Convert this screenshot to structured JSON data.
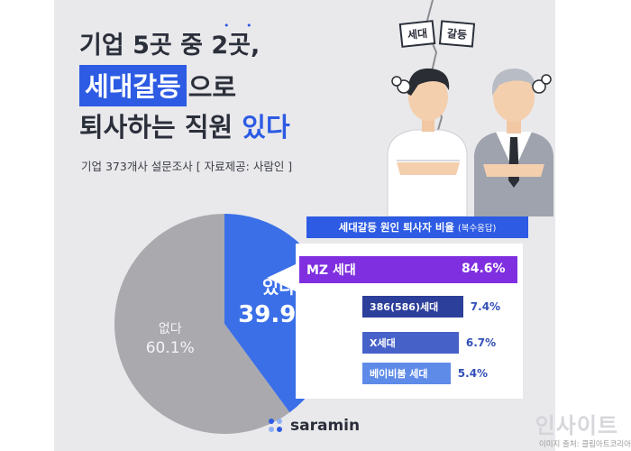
{
  "headline": {
    "line1": "기업 5곳 중 2곳,",
    "line2_highlight": "세대갈등",
    "line2_rest": "으로",
    "line3_main": "퇴사하는 직원 ",
    "line3_blue": "있다"
  },
  "source": "기업 373개사 설문조사 [ 자료제공: 사람인 ]",
  "speech_bubbles": [
    "세대",
    "갈등"
  ],
  "colors": {
    "accent": "#2d5be3",
    "pie_yes": "#3b6fe8",
    "pie_no": "#a9a9ae",
    "bar_mz": "#7f2fe0",
    "bar_386": "#2c3f9a",
    "bar_x": "#4662c9",
    "bar_boomer": "#5f8be8",
    "value_text": "#3350b8"
  },
  "chart_data": [
    {
      "type": "pie",
      "labels": [
        "있다",
        "없다"
      ],
      "values": [
        39.9,
        60.1
      ],
      "value_labels": [
        "39.9%",
        "60.1%"
      ]
    },
    {
      "type": "bar",
      "title": "세대갈등 원인 퇴사자 비율",
      "subtitle": "(복수응답)",
      "categories": [
        "MZ 세대",
        "386(586)세대",
        "X세대",
        "베이비붐 세대"
      ],
      "values": [
        84.6,
        7.4,
        6.7,
        5.4
      ],
      "value_labels": [
        "84.6%",
        "7.4%",
        "6.7%",
        "5.4%"
      ]
    }
  ],
  "logo": {
    "text": "saramin",
    "icon": "saramin-dots-icon"
  },
  "credit": "이미지 출처: 클립아트코리아",
  "watermark": "인사이트"
}
